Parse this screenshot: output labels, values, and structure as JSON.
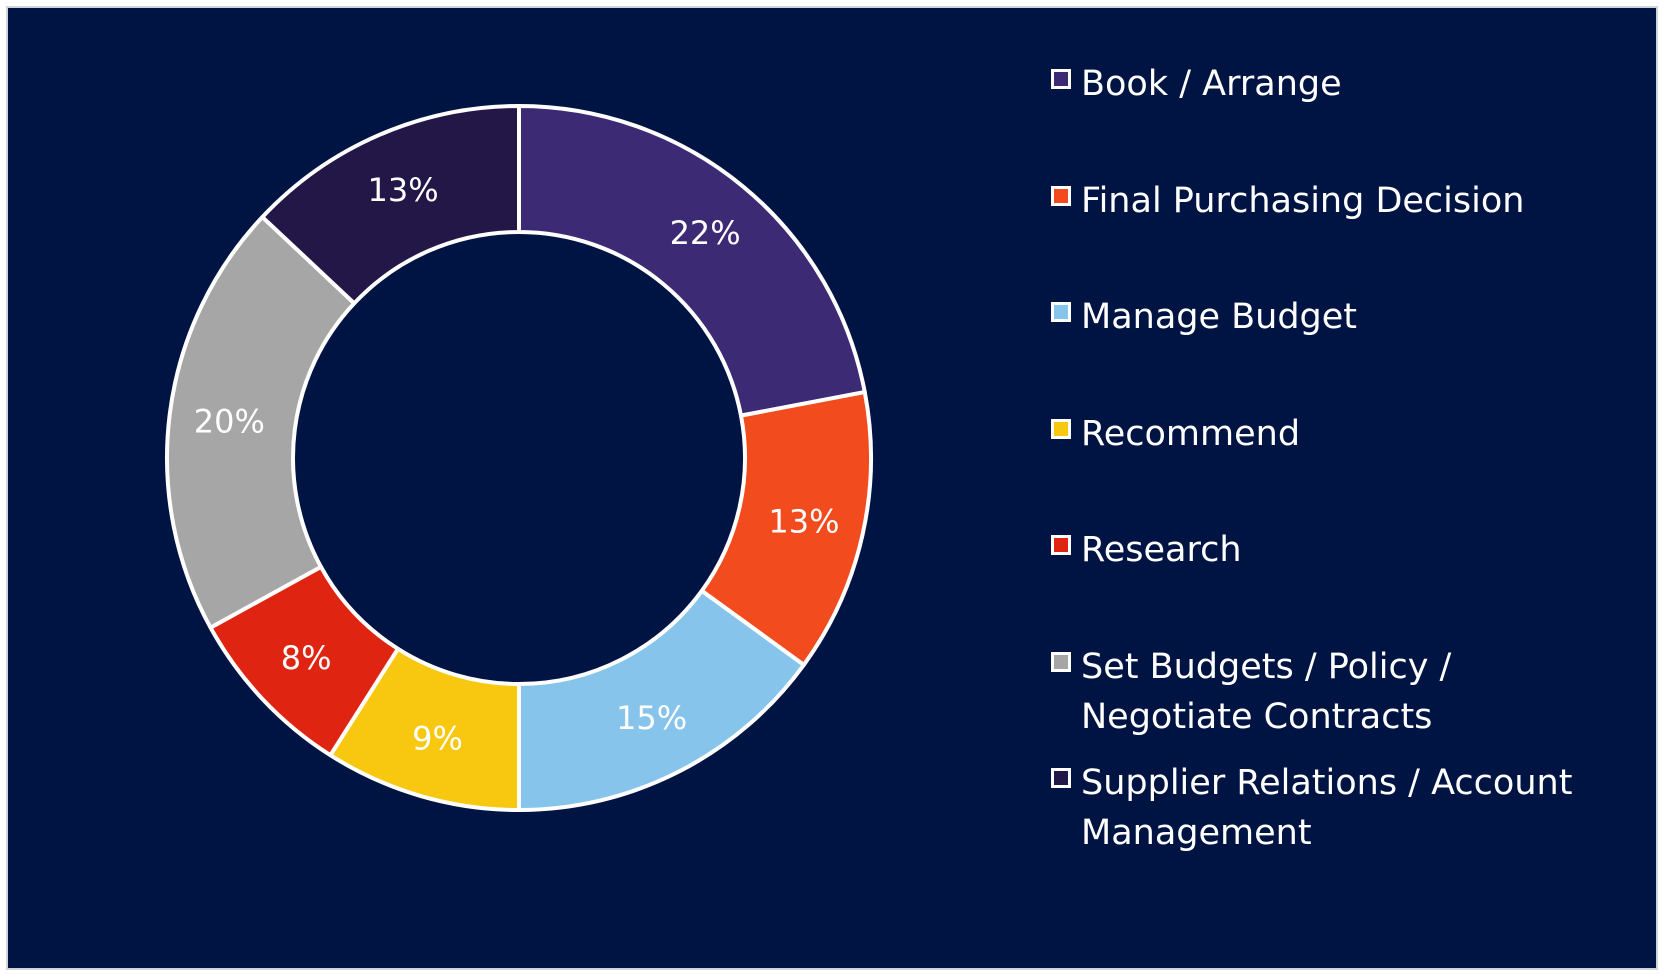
{
  "chart_data": {
    "type": "pie",
    "title": "",
    "categories": [
      "Book / Arrange",
      "Final Purchasing Decision",
      "Manage Budget",
      "Recommend",
      "Research",
      "Set Budgets / Policy / Negotiate Contracts",
      "Supplier Relations / Account Management"
    ],
    "values": [
      22,
      13,
      15,
      9,
      8,
      20,
      13
    ],
    "value_labels": [
      "22%",
      "13%",
      "15%",
      "9%",
      "8%",
      "20%",
      "13%"
    ],
    "colors": [
      "#3d2a74",
      "#f24b1e",
      "#86c4ec",
      "#f7c80f",
      "#df2411",
      "#a6a6a6",
      "#221746"
    ],
    "unit": "%",
    "legend_position": "right",
    "background_color": "#001443"
  }
}
